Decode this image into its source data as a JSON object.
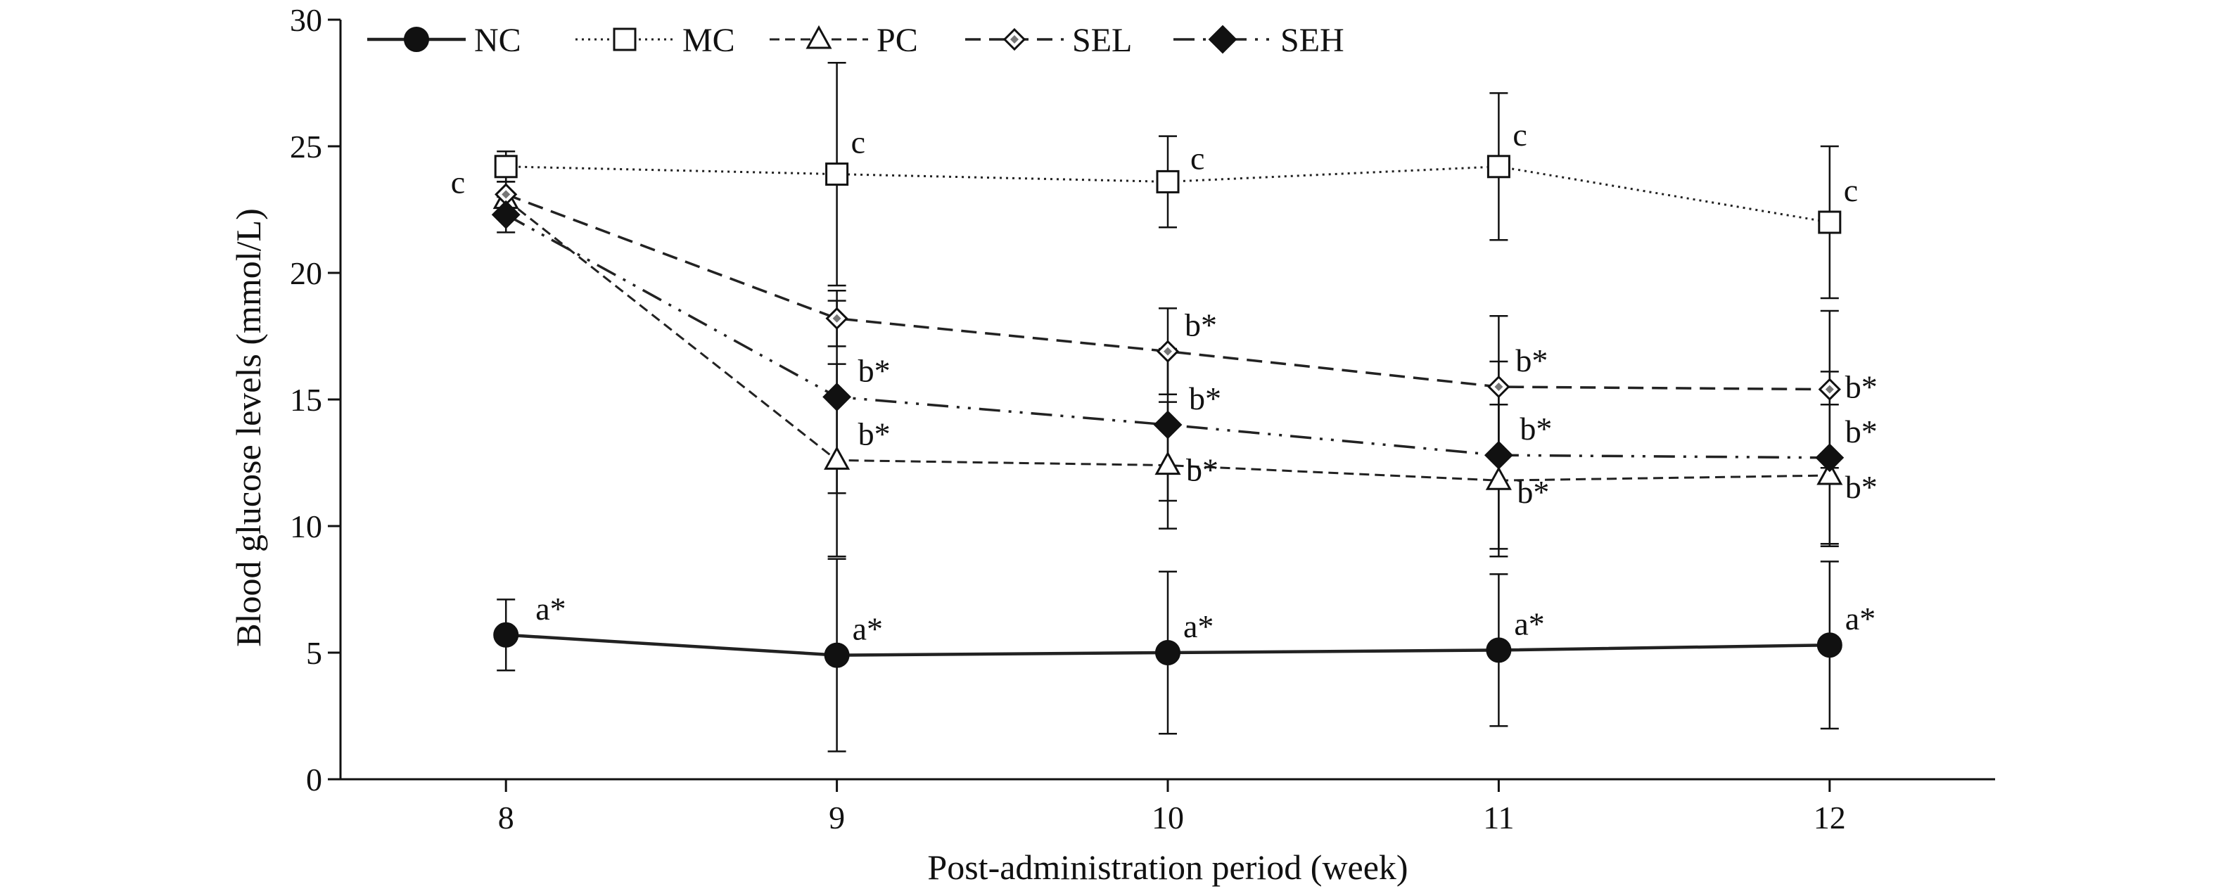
{
  "chart_data": {
    "type": "line",
    "title": "",
    "xlabel": "Post-administration period (week)",
    "ylabel": "Blood glucose levels (mmol/L)",
    "x": [
      8,
      9,
      10,
      11,
      12
    ],
    "x_ticks": [
      "8",
      "9",
      "10",
      "11",
      "12"
    ],
    "xlim": [
      7.5,
      12.5
    ],
    "ylim": [
      0,
      30
    ],
    "y_ticks": [
      "0",
      "5",
      "10",
      "15",
      "20",
      "25",
      "30"
    ],
    "grid": false,
    "legend_position": "top-left",
    "series": [
      {
        "name": "NC",
        "marker": "filled-circle",
        "line_style": "solid",
        "values": [
          5.7,
          4.9,
          5.0,
          5.1,
          5.3
        ],
        "error": [
          1.4,
          3.8,
          3.2,
          3.0,
          3.3
        ],
        "labels": [
          "a*",
          "a*",
          "a*",
          "a*",
          "a*"
        ]
      },
      {
        "name": "MC",
        "marker": "open-square",
        "line_style": "dotted",
        "values": [
          24.2,
          23.9,
          23.6,
          24.2,
          22.0
        ],
        "error": [
          0.6,
          4.4,
          1.8,
          2.9,
          3.0
        ],
        "labels": [
          "",
          "c",
          "c",
          "c",
          "c"
        ]
      },
      {
        "name": "PC",
        "marker": "open-triangle",
        "line_style": "short-dash",
        "values": [
          22.9,
          12.6,
          12.4,
          11.8,
          12.0
        ],
        "error": [
          0.7,
          3.8,
          2.5,
          3.0,
          2.8
        ],
        "labels": [
          "",
          "b*",
          "b*",
          "b*",
          "b*"
        ]
      },
      {
        "name": "SEL",
        "marker": "open-diamond",
        "line_style": "dash",
        "values": [
          23.1,
          18.2,
          16.9,
          15.5,
          15.4
        ],
        "error": [
          0.8,
          1.1,
          1.7,
          2.8,
          3.1
        ],
        "labels": [
          "c",
          "",
          "b*",
          "b*",
          "b*"
        ]
      },
      {
        "name": "SEH",
        "marker": "filled-diamond",
        "line_style": "dash-dot-dot",
        "values": [
          22.3,
          15.1,
          14.0,
          12.8,
          12.7
        ],
        "error": [
          0.7,
          3.8,
          3.0,
          3.7,
          3.4
        ],
        "labels": [
          "",
          "b*",
          "b*",
          "b*",
          "b*"
        ]
      }
    ]
  }
}
